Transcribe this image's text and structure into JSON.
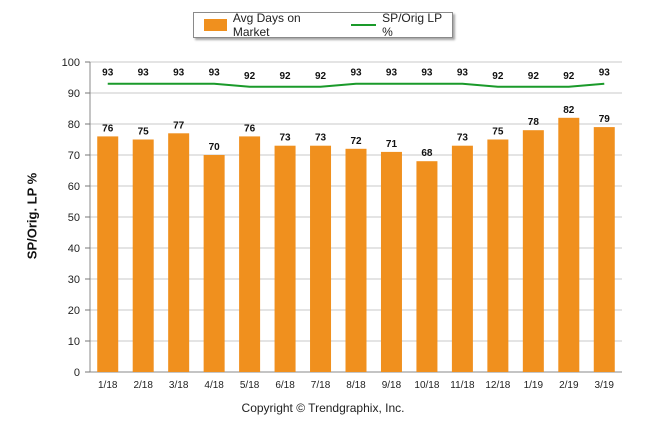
{
  "chart_data": {
    "type": "bar",
    "categories": [
      "1/18",
      "2/18",
      "3/18",
      "4/18",
      "5/18",
      "6/18",
      "7/18",
      "8/18",
      "9/18",
      "10/18",
      "11/18",
      "12/18",
      "1/19",
      "2/19",
      "3/19"
    ],
    "series": [
      {
        "name": "Avg Days on Market",
        "type": "bar",
        "color": "#f0901e",
        "values": [
          76,
          75,
          77,
          70,
          76,
          73,
          73,
          72,
          71,
          68,
          73,
          75,
          78,
          82,
          79
        ]
      },
      {
        "name": "SP/Orig LP %",
        "type": "line",
        "color": "#1a9a2a",
        "values": [
          93,
          93,
          93,
          93,
          92,
          92,
          92,
          93,
          93,
          93,
          93,
          92,
          92,
          92,
          93
        ]
      }
    ],
    "ylabel": "SP/Orig. LP %",
    "ylim": [
      0,
      100
    ],
    "yticks": [
      0,
      10,
      20,
      30,
      40,
      50,
      60,
      70,
      80,
      90,
      100
    ],
    "grid": true,
    "legend": "top-center"
  },
  "footer": {
    "text": "Copyright © Trendgraphix, Inc."
  }
}
